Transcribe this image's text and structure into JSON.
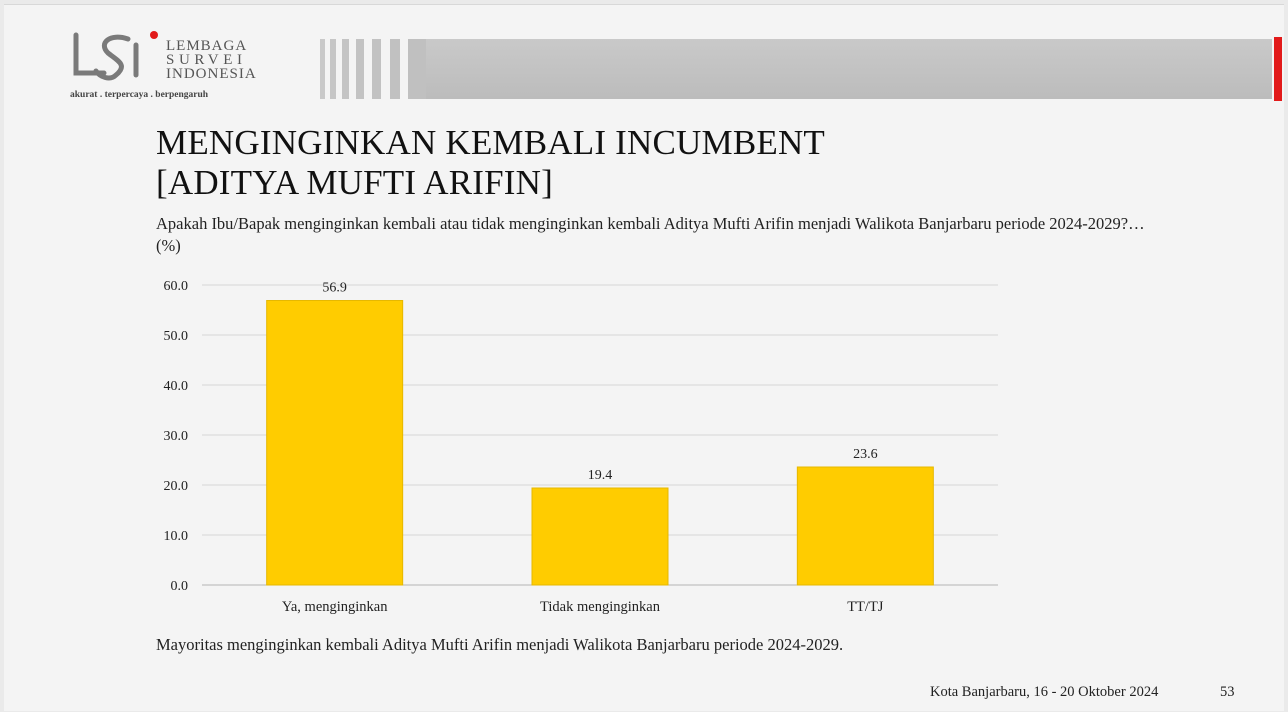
{
  "logo": {
    "line1": "LEMBAGA",
    "line2": "SURVEI",
    "line3": "INDONESIA",
    "tagline": "akurat . terpercaya . berpengaruh"
  },
  "slide": {
    "title_line1": "MENGINGINKAN KEMBALI INCUMBENT",
    "title_line2": "[ADITYA MUFTI ARIFIN]",
    "question": "Apakah Ibu/Bapak menginginkan kembali atau tidak menginginkan kembali Aditya Mufti Arifin menjadi Walikota Banjarbaru periode 2024-2029?…(%)",
    "conclusion": "Mayoritas menginginkan kembali Aditya Mufti Arifin menjadi Walikota Banjarbaru periode 2024-2029.",
    "footer_place": "Kota Banjarbaru, 16 - 20 Oktober 2024",
    "page_number": "53"
  },
  "colors": {
    "bar": "#ffcc00",
    "accent": "#e21a1a",
    "band": "#c4c4c4"
  },
  "chart_data": {
    "type": "bar",
    "categories": [
      "Ya, menginginkan",
      "Tidak menginginkan",
      "TT/TJ"
    ],
    "values": [
      56.9,
      19.4,
      23.6
    ],
    "value_labels": [
      "56.9",
      "19.4",
      "23.6"
    ],
    "yticks": [
      "0.0",
      "10.0",
      "20.0",
      "30.0",
      "40.0",
      "50.0",
      "60.0"
    ],
    "ylim": [
      0,
      60
    ],
    "grid": true,
    "legend": "none"
  }
}
